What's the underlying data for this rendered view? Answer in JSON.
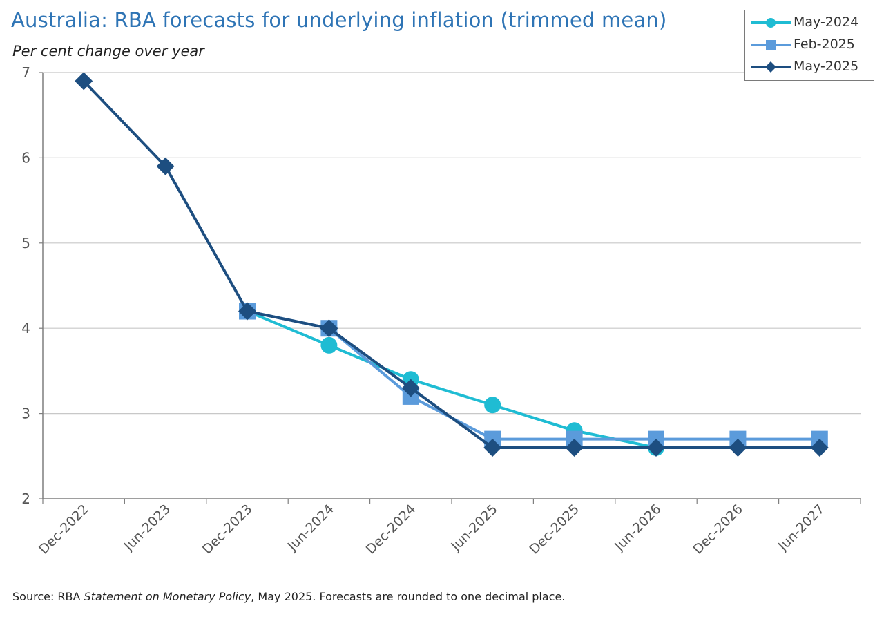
{
  "title": "Australia: RBA forecasts for underlying inflation (trimmed mean)",
  "subtitle": "Per cent change over year",
  "source": {
    "prefix": "Source: RBA ",
    "publication": "Statement on Monetary Policy",
    "suffix": ", May 2025. Forecasts are rounded to one decimal place."
  },
  "colors": {
    "may2024": "#1fbcd3",
    "feb2025": "#5b9bdb",
    "may2025": "#1d4e80",
    "grid": "#c8c8c8",
    "axis": "#7f7f7f"
  },
  "legend": [
    {
      "name": "May-2024",
      "marker": "circle"
    },
    {
      "name": "Feb-2025",
      "marker": "square"
    },
    {
      "name": "May-2025",
      "marker": "diamond"
    }
  ],
  "chart_data": {
    "type": "line",
    "title": "Australia: RBA forecasts for underlying inflation (trimmed mean)",
    "ylabel": "Per cent change over year",
    "xlabel": "",
    "categories": [
      "Dec-2022",
      "Jun-2023",
      "Dec-2023",
      "Jun-2024",
      "Dec-2024",
      "Jun-2025",
      "Dec-2025",
      "Jun-2026",
      "Dec-2026",
      "Jun-2027"
    ],
    "ylim": [
      2,
      7
    ],
    "yticks": [
      2,
      3,
      4,
      5,
      6,
      7
    ],
    "grid": true,
    "legend_position": "top-right",
    "series": [
      {
        "name": "May-2024",
        "marker": "circle",
        "color": "#1fbcd3",
        "values": [
          null,
          null,
          4.2,
          3.8,
          3.4,
          3.1,
          2.8,
          2.6,
          null,
          null
        ]
      },
      {
        "name": "Feb-2025",
        "marker": "square",
        "color": "#5b9bdb",
        "values": [
          null,
          null,
          4.2,
          4.0,
          3.2,
          2.7,
          2.7,
          2.7,
          2.7,
          2.7
        ]
      },
      {
        "name": "May-2025",
        "marker": "diamond",
        "color": "#1d4e80",
        "values": [
          6.9,
          5.9,
          4.2,
          4.0,
          3.3,
          2.6,
          2.6,
          2.6,
          2.6,
          2.6
        ]
      }
    ]
  }
}
